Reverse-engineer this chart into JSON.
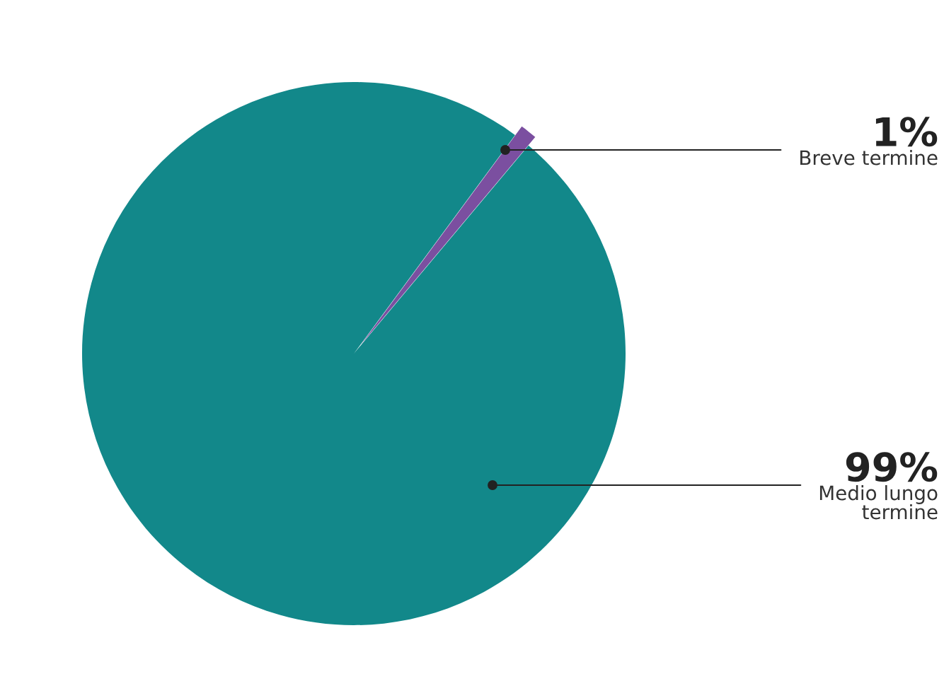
{
  "chart_data": {
    "type": "pie",
    "categories": [
      "Breve termine",
      "Medio lungo\ntermine"
    ],
    "values": [
      1,
      99
    ],
    "colors": [
      "#7b4fa0",
      "#12888a"
    ],
    "value_labels": [
      "1%",
      "99%"
    ],
    "legend": false
  }
}
